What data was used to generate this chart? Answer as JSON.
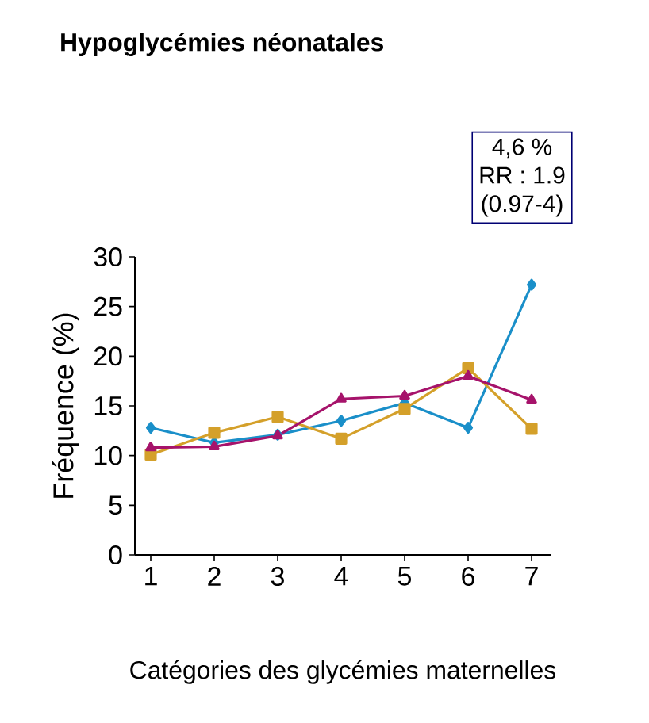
{
  "chart_data": {
    "type": "line",
    "title": "Hypoglycémies néonatales",
    "xlabel": "Catégories des glycémies maternelles",
    "ylabel": "Fréquence (%)",
    "categories": [
      "1",
      "2",
      "3",
      "4",
      "5",
      "6",
      "7"
    ],
    "series": [
      {
        "color": "#1a8fc9",
        "marker": "diamond",
        "values": [
          12.8,
          11.3,
          12.1,
          13.5,
          15.3,
          12.8,
          27.2
        ]
      },
      {
        "color": "#d4a02a",
        "marker": "square",
        "values": [
          10.1,
          12.3,
          13.9,
          11.7,
          14.7,
          18.8,
          12.7
        ]
      },
      {
        "color": "#a6136b",
        "marker": "triangle",
        "values": [
          10.8,
          10.9,
          12.0,
          15.7,
          16.0,
          18.0,
          15.6
        ]
      }
    ],
    "ylim": [
      0,
      30
    ],
    "yticks": [
      0,
      5,
      10,
      15,
      20,
      25,
      30
    ],
    "annotations": [
      "4,6 %",
      "RR : 1.9",
      "(0.97-4)"
    ]
  }
}
